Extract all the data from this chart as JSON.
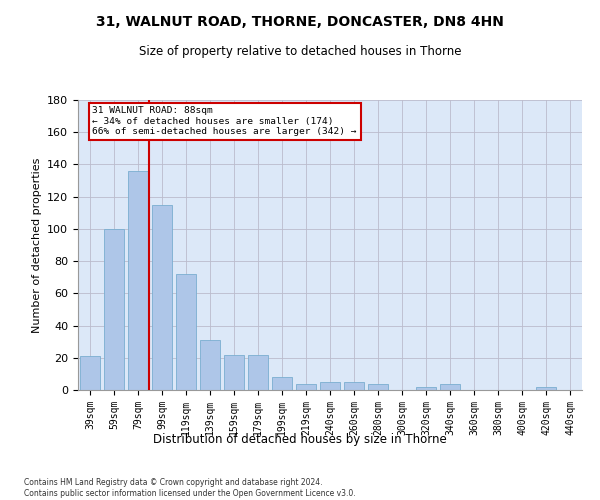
{
  "title_line1": "31, WALNUT ROAD, THORNE, DONCASTER, DN8 4HN",
  "title_line2": "Size of property relative to detached houses in Thorne",
  "xlabel": "Distribution of detached houses by size in Thorne",
  "ylabel": "Number of detached properties",
  "categories": [
    "39sqm",
    "59sqm",
    "79sqm",
    "99sqm",
    "119sqm",
    "139sqm",
    "159sqm",
    "179sqm",
    "199sqm",
    "219sqm",
    "240sqm",
    "260sqm",
    "280sqm",
    "300sqm",
    "320sqm",
    "340sqm",
    "360sqm",
    "380sqm",
    "400sqm",
    "420sqm",
    "440sqm"
  ],
  "values": [
    21,
    100,
    136,
    115,
    72,
    31,
    22,
    22,
    8,
    4,
    5,
    5,
    4,
    0,
    2,
    4,
    0,
    0,
    0,
    2,
    0
  ],
  "bar_color": "#aec6e8",
  "bar_edge_color": "#7aaed0",
  "background_color": "#dce8f8",
  "grid_color": "#bbbbcc",
  "red_color": "#cc0000",
  "annotation_text_line1": "31 WALNUT ROAD: 88sqm",
  "annotation_text_line2": "← 34% of detached houses are smaller (174)",
  "annotation_text_line3": "66% of semi-detached houses are larger (342) →",
  "ylim_max": 180,
  "yticks": [
    0,
    20,
    40,
    60,
    80,
    100,
    120,
    140,
    160,
    180
  ],
  "footnote_line1": "Contains HM Land Registry data © Crown copyright and database right 2024.",
  "footnote_line2": "Contains public sector information licensed under the Open Government Licence v3.0."
}
